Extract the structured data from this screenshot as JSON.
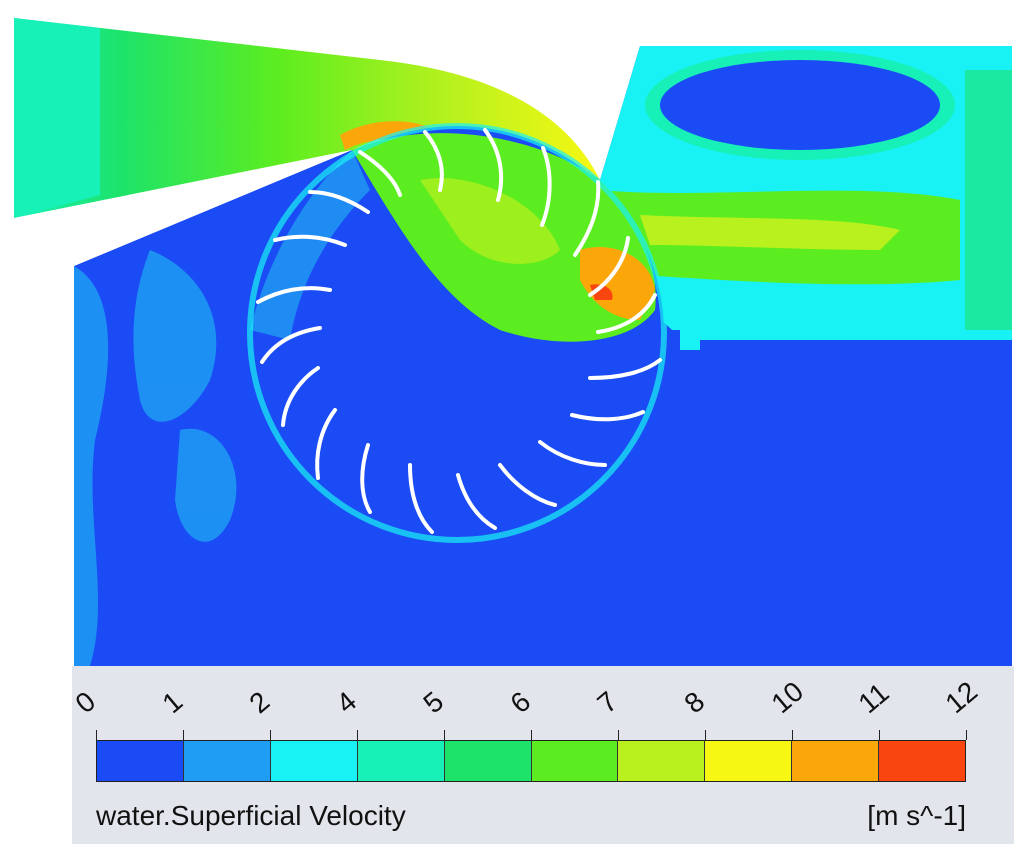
{
  "legend": {
    "title": "water.Superficial Velocity",
    "unit": "[m s^-1]",
    "ticks": [
      "0",
      "1",
      "2",
      "4",
      "5",
      "6",
      "7",
      "8",
      "10",
      "11",
      "12"
    ],
    "colors": [
      "#1a4bf5",
      "#1f9cf3",
      "#19f2f4",
      "#17f0b7",
      "#1de36b",
      "#5ced20",
      "#b9f11e",
      "#f6f813",
      "#fba70a",
      "#f9450f"
    ]
  },
  "palette": {
    "background": "#1a4bf5",
    "blade": "#ffffff",
    "panel": "#e2e6ec"
  }
}
